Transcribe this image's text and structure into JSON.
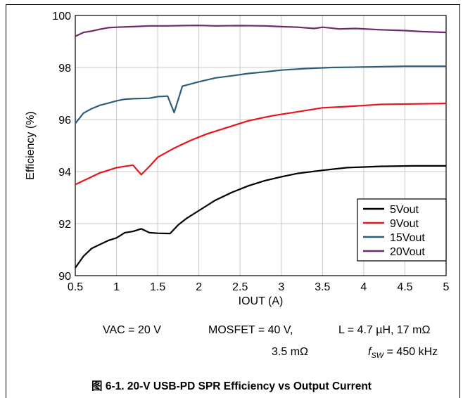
{
  "chart_data": {
    "type": "line",
    "title": "",
    "xlabel": "IOUT (A)",
    "ylabel": "Efficiency (%)",
    "xlim": [
      0.5,
      5
    ],
    "ylim": [
      90,
      100
    ],
    "x_ticks": [
      "0.5",
      "1",
      "1.5",
      "2",
      "2.5",
      "3",
      "3.5",
      "4",
      "4.5",
      "5"
    ],
    "y_ticks": [
      "90",
      "92",
      "94",
      "96",
      "98",
      "100"
    ],
    "grid": true,
    "legend_position": "bottom-right",
    "series": [
      {
        "name": "5Vout",
        "color": "#000000",
        "points": [
          [
            0.5,
            90.3
          ],
          [
            0.6,
            90.75
          ],
          [
            0.7,
            91.05
          ],
          [
            0.8,
            91.2
          ],
          [
            0.9,
            91.35
          ],
          [
            1.0,
            91.45
          ],
          [
            1.1,
            91.65
          ],
          [
            1.2,
            91.7
          ],
          [
            1.3,
            91.8
          ],
          [
            1.4,
            91.65
          ],
          [
            1.5,
            91.63
          ],
          [
            1.65,
            91.62
          ],
          [
            1.75,
            91.95
          ],
          [
            1.85,
            92.2
          ],
          [
            2.0,
            92.5
          ],
          [
            2.2,
            92.9
          ],
          [
            2.4,
            93.2
          ],
          [
            2.6,
            93.45
          ],
          [
            2.8,
            93.65
          ],
          [
            3.0,
            93.8
          ],
          [
            3.2,
            93.93
          ],
          [
            3.5,
            94.05
          ],
          [
            3.8,
            94.15
          ],
          [
            4.2,
            94.2
          ],
          [
            4.6,
            94.22
          ],
          [
            5.0,
            94.22
          ]
        ]
      },
      {
        "name": "9Vout",
        "color": "#e8161b",
        "points": [
          [
            0.5,
            93.5
          ],
          [
            0.6,
            93.65
          ],
          [
            0.7,
            93.8
          ],
          [
            0.8,
            93.95
          ],
          [
            0.9,
            94.05
          ],
          [
            1.0,
            94.15
          ],
          [
            1.1,
            94.2
          ],
          [
            1.2,
            94.25
          ],
          [
            1.3,
            93.88
          ],
          [
            1.4,
            94.2
          ],
          [
            1.5,
            94.55
          ],
          [
            1.7,
            94.9
          ],
          [
            1.9,
            95.2
          ],
          [
            2.1,
            95.45
          ],
          [
            2.3,
            95.65
          ],
          [
            2.6,
            95.95
          ],
          [
            2.9,
            96.15
          ],
          [
            3.2,
            96.3
          ],
          [
            3.5,
            96.45
          ],
          [
            3.8,
            96.5
          ],
          [
            4.2,
            96.58
          ],
          [
            4.6,
            96.6
          ],
          [
            5.0,
            96.62
          ]
        ]
      },
      {
        "name": "15Vout",
        "color": "#2e5e78",
        "points": [
          [
            0.5,
            95.85
          ],
          [
            0.6,
            96.25
          ],
          [
            0.7,
            96.42
          ],
          [
            0.8,
            96.55
          ],
          [
            0.9,
            96.63
          ],
          [
            1.0,
            96.72
          ],
          [
            1.1,
            96.78
          ],
          [
            1.2,
            96.8
          ],
          [
            1.4,
            96.82
          ],
          [
            1.5,
            96.88
          ],
          [
            1.62,
            96.9
          ],
          [
            1.7,
            96.27
          ],
          [
            1.8,
            97.28
          ],
          [
            2.0,
            97.45
          ],
          [
            2.2,
            97.6
          ],
          [
            2.4,
            97.68
          ],
          [
            2.6,
            97.77
          ],
          [
            2.8,
            97.83
          ],
          [
            3.0,
            97.9
          ],
          [
            3.3,
            97.96
          ],
          [
            3.6,
            98.0
          ],
          [
            4.0,
            98.02
          ],
          [
            4.5,
            98.05
          ],
          [
            5.0,
            98.05
          ]
        ]
      },
      {
        "name": "20Vout",
        "color": "#6e2b6b",
        "points": [
          [
            0.5,
            99.2
          ],
          [
            0.6,
            99.35
          ],
          [
            0.7,
            99.4
          ],
          [
            0.8,
            99.47
          ],
          [
            0.9,
            99.53
          ],
          [
            1.0,
            99.55
          ],
          [
            1.2,
            99.57
          ],
          [
            1.4,
            99.6
          ],
          [
            1.6,
            99.6
          ],
          [
            1.8,
            99.61
          ],
          [
            2.0,
            99.62
          ],
          [
            2.2,
            99.6
          ],
          [
            2.5,
            99.61
          ],
          [
            2.8,
            99.6
          ],
          [
            3.0,
            99.57
          ],
          [
            3.2,
            99.55
          ],
          [
            3.4,
            99.5
          ],
          [
            3.5,
            99.55
          ],
          [
            3.6,
            99.52
          ],
          [
            3.7,
            99.48
          ],
          [
            3.9,
            99.5
          ],
          [
            4.2,
            99.45
          ],
          [
            4.5,
            99.42
          ],
          [
            4.7,
            99.38
          ],
          [
            5.0,
            99.35
          ]
        ]
      }
    ]
  },
  "conditions": {
    "vac": "VAC = 20 V",
    "mosfet_line1": "MOSFET = 40 V,",
    "mosfet_line2": "3.5 mΩ",
    "inductor": "L = 4.7 µH, 17 mΩ",
    "fsw_symbol": "f",
    "fsw_subscript": "SW",
    "fsw_value": " = 450 kHz"
  },
  "caption": "图 6-1. 20-V USB-PD SPR Efficiency vs Output Current"
}
